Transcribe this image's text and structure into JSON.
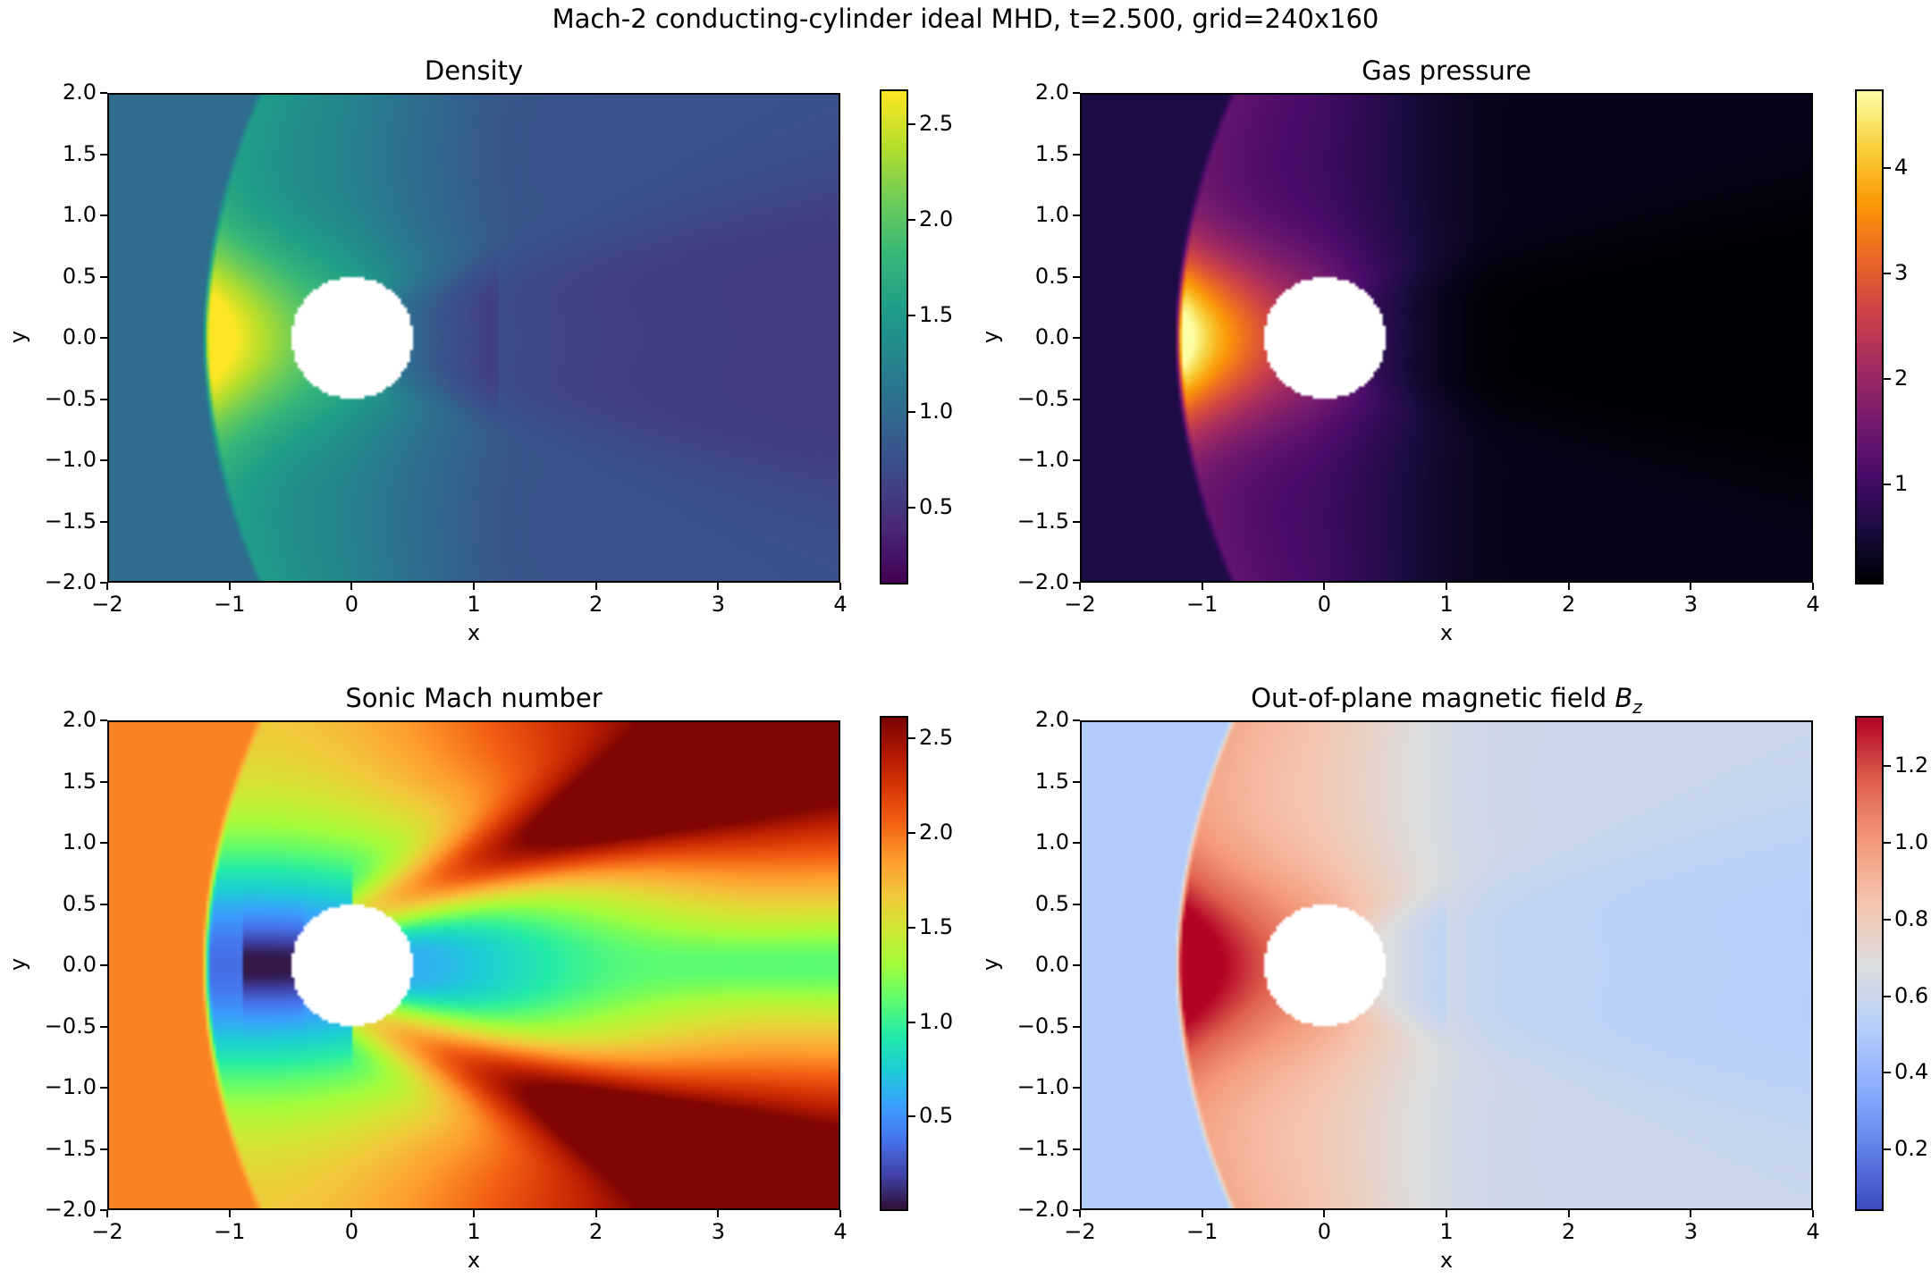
{
  "figure": {
    "suptitle": "Mach-2 conducting-cylinder ideal MHD, t=2.500, grid=240x160"
  },
  "chart_data": [
    {
      "type": "heatmap",
      "title": "Density",
      "xlabel": "x",
      "ylabel": "y",
      "xlim": [
        -2,
        4
      ],
      "ylim": [
        -2,
        2
      ],
      "xticks": [
        "−2",
        "−1",
        "0",
        "1",
        "2",
        "3",
        "4"
      ],
      "yticks": [
        "2.0",
        "1.5",
        "1.0",
        "0.5",
        "0.0",
        "−0.5",
        "−1.0",
        "−1.5",
        "−2.0"
      ],
      "colormap": "viridis",
      "clim": [
        0.1,
        2.68
      ],
      "colorbar_ticks": [
        "2.5",
        "2.0",
        "1.5",
        "1.0",
        "0.5"
      ],
      "colorbar_tick_values": [
        2.5,
        2.0,
        1.5,
        1.0,
        0.5
      ],
      "field": "density",
      "obstacle": {
        "shape": "circle",
        "center": [
          0,
          0
        ],
        "radius": 0.5
      },
      "freestream_value": 1.0,
      "peak_value": 2.6
    },
    {
      "type": "heatmap",
      "title": "Gas pressure",
      "xlabel": "x",
      "ylabel": "y",
      "xlim": [
        -2,
        4
      ],
      "ylim": [
        -2,
        2
      ],
      "xticks": [
        "−2",
        "−1",
        "0",
        "1",
        "2",
        "3",
        "4"
      ],
      "yticks": [
        "2.0",
        "1.5",
        "1.0",
        "0.5",
        "0.0",
        "−0.5",
        "−1.0",
        "−1.5",
        "−2.0"
      ],
      "colormap": "inferno",
      "clim": [
        0.05,
        4.75
      ],
      "colorbar_ticks": [
        "4",
        "3",
        "2",
        "1"
      ],
      "colorbar_tick_values": [
        4,
        3,
        2,
        1
      ],
      "field": "pressure",
      "obstacle": {
        "shape": "circle",
        "center": [
          0,
          0
        ],
        "radius": 0.5
      },
      "freestream_value": 0.6,
      "peak_value": 4.7
    },
    {
      "type": "heatmap",
      "title": "Sonic Mach number",
      "xlabel": "x",
      "ylabel": "y",
      "xlim": [
        -2,
        4
      ],
      "ylim": [
        -2,
        2
      ],
      "xticks": [
        "−2",
        "−1",
        "0",
        "1",
        "2",
        "3",
        "4"
      ],
      "yticks": [
        "2.0",
        "1.5",
        "1.0",
        "0.5",
        "0.0",
        "−0.5",
        "−1.0",
        "−1.5",
        "−2.0"
      ],
      "colormap": "turbo",
      "clim": [
        0.0,
        2.62
      ],
      "colorbar_ticks": [
        "2.5",
        "2.0",
        "1.5",
        "1.0",
        "0.5"
      ],
      "colorbar_tick_values": [
        2.5,
        2.0,
        1.5,
        1.0,
        0.5
      ],
      "field": "mach",
      "obstacle": {
        "shape": "circle",
        "center": [
          0,
          0
        ],
        "radius": 0.5
      },
      "freestream_value": 2.0,
      "peak_value": 2.6
    },
    {
      "type": "heatmap",
      "title": "Out-of-plane magnetic field ",
      "title_math": "B",
      "title_sub": "z",
      "xlabel": "x",
      "ylabel": "y",
      "xlim": [
        -2,
        4
      ],
      "ylim": [
        -2,
        2
      ],
      "xticks": [
        "−2",
        "−1",
        "0",
        "1",
        "2",
        "3",
        "4"
      ],
      "yticks": [
        "2.0",
        "1.5",
        "1.0",
        "0.5",
        "0.0",
        "−0.5",
        "−1.0",
        "−1.5",
        "−2.0"
      ],
      "colormap": "coolwarm",
      "clim": [
        0.04,
        1.33
      ],
      "colorbar_ticks": [
        "1.2",
        "1.0",
        "0.8",
        "0.6",
        "0.4",
        "0.2"
      ],
      "colorbar_tick_values": [
        1.2,
        1.0,
        0.8,
        0.6,
        0.4,
        0.2
      ],
      "field": "bz",
      "obstacle": {
        "shape": "circle",
        "center": [
          0,
          0
        ],
        "radius": 0.5
      },
      "freestream_value": 0.5,
      "peak_value": 1.3
    }
  ]
}
